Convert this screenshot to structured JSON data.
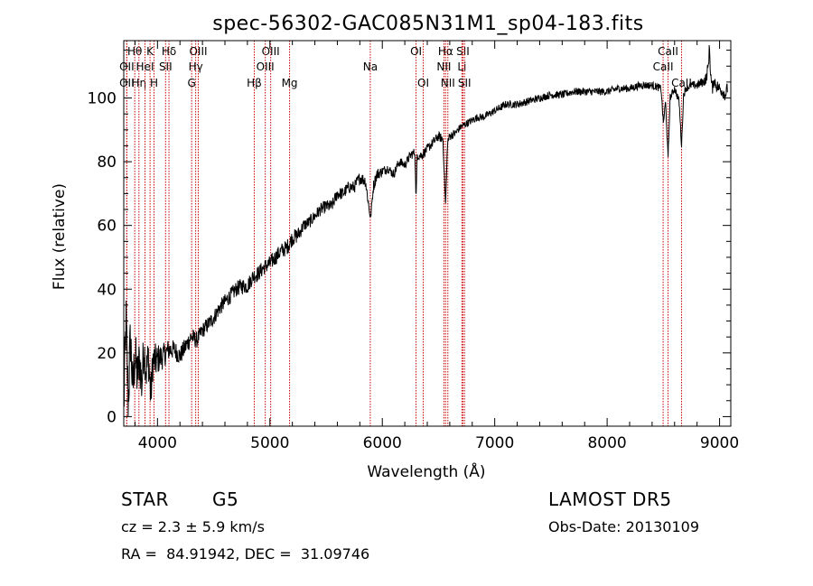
{
  "chart_data": {
    "type": "line",
    "title": "spec-56302-GAC085N31M1_sp04-183.fits",
    "xlabel": "Wavelength (Å)",
    "ylabel": "Flux (relative)",
    "xlim": [
      3700,
      9100
    ],
    "ylim": [
      -3,
      118
    ],
    "xticks": [
      4000,
      5000,
      6000,
      7000,
      8000,
      9000
    ],
    "yticks": [
      0,
      20,
      40,
      60,
      80,
      100
    ],
    "grid": false,
    "series": [
      {
        "color": "#000000",
        "x": [
          3700,
          3720,
          3740,
          3760,
          3780,
          3800,
          3820,
          3840,
          3860,
          3880,
          3900,
          3920,
          3940,
          3960,
          3980,
          4000,
          4050,
          4100,
          4150,
          4200,
          4250,
          4300,
          4350,
          4400,
          4450,
          4500,
          4550,
          4600,
          4650,
          4700,
          4750,
          4800,
          4850,
          4900,
          4950,
          5000,
          5050,
          5100,
          5150,
          5200,
          5250,
          5300,
          5350,
          5400,
          5450,
          5500,
          5550,
          5600,
          5650,
          5700,
          5750,
          5800,
          5850,
          5895,
          5920,
          5950,
          6000,
          6050,
          6100,
          6150,
          6200,
          6250,
          6290,
          6300,
          6310,
          6350,
          6400,
          6450,
          6500,
          6540,
          6563,
          6580,
          6600,
          6650,
          6700,
          6750,
          6800,
          6850,
          6900,
          6950,
          7000,
          7100,
          7200,
          7300,
          7400,
          7500,
          7600,
          7700,
          7800,
          7900,
          8000,
          8100,
          8200,
          8300,
          8400,
          8480,
          8500,
          8520,
          8542,
          8560,
          8600,
          8640,
          8662,
          8680,
          8700,
          8750,
          8800,
          8850,
          8880,
          8900,
          8910,
          8920,
          8930,
          8940,
          8950,
          8970,
          9000,
          9030,
          9050,
          9070
        ],
        "y": [
          3,
          30,
          5,
          25,
          8,
          20,
          12,
          18,
          10,
          22,
          14,
          19,
          6,
          18,
          17,
          18,
          19,
          21,
          21,
          19,
          22,
          25,
          24,
          27,
          29,
          31,
          34,
          36,
          38,
          40,
          41,
          41,
          44,
          45,
          47,
          48,
          50,
          52,
          53,
          56,
          57,
          60,
          61,
          63,
          65,
          66,
          66,
          70,
          70,
          72,
          72,
          75,
          74,
          62,
          72,
          76,
          77,
          78,
          76,
          80,
          79,
          82,
          83,
          68,
          82,
          82,
          84,
          86,
          88,
          87,
          66,
          86,
          88,
          89,
          91,
          92,
          93,
          94,
          94,
          95,
          96,
          98,
          98,
          99,
          100,
          101,
          101,
          102,
          102,
          102,
          102,
          103,
          103,
          104,
          104,
          103,
          92,
          99,
          81,
          100,
          103,
          99,
          85,
          101,
          103,
          104,
          104,
          105,
          106,
          110,
          116,
          108,
          104,
          103,
          106,
          104,
          103,
          102,
          101,
          103
        ],
        "noise_amplitude": [
          10,
          10,
          10,
          10,
          9,
          9,
          8,
          8,
          8,
          7,
          7,
          7,
          7,
          6,
          6,
          5,
          4,
          3.5,
          3,
          3,
          3,
          3,
          2.5,
          2.5,
          2.5,
          2.5,
          2.5,
          2.5,
          2.5,
          2.5,
          2.5,
          2.5,
          2.5,
          2.5,
          2.5,
          2.5,
          2.5,
          2.5,
          2.5,
          2.5,
          2.5,
          2,
          2,
          2,
          2,
          2,
          2,
          2,
          2,
          2,
          2,
          2,
          2,
          1,
          2,
          2,
          1.5,
          1.5,
          1.5,
          1.5,
          1.5,
          1.5,
          1.5,
          1,
          1.5,
          1.5,
          1.5,
          1.5,
          1.5,
          1.5,
          1,
          1.5,
          1.5,
          1.2,
          1.2,
          1.2,
          1.2,
          1.2,
          1.2,
          1.2,
          1.2,
          1.2,
          1.2,
          1.2,
          1.2,
          1.2,
          1.2,
          1.2,
          1.2,
          1.2,
          1.2,
          1.2,
          1.2,
          1.2,
          1.2,
          1.2,
          1,
          1,
          1,
          1.2,
          1.2,
          1.2,
          1,
          1.2,
          1.2,
          1.2,
          1.5,
          1.5,
          2,
          2,
          2,
          2,
          2,
          2,
          2,
          2,
          2,
          2,
          2,
          2
        ]
      }
    ],
    "line_markers": [
      {
        "label": "Hθ",
        "wl": 3798,
        "row": 0,
        "color": "#cc0000"
      },
      {
        "label": "OII",
        "wl": 3727,
        "row": 1,
        "color": "#cc0000"
      },
      {
        "label": "OII",
        "wl": 3727,
        "row": 2,
        "color": "#cc0000"
      },
      {
        "label": "Hη",
        "wl": 3835,
        "row": 2,
        "color": "#cc0000"
      },
      {
        "label": "HeI",
        "wl": 3889,
        "row": 1,
        "color": "#cc0000"
      },
      {
        "label": "K",
        "wl": 3934,
        "row": 0,
        "color": "#cc0000"
      },
      {
        "label": "H",
        "wl": 3969,
        "row": 2,
        "color": "#cc0000"
      },
      {
        "label": "Hδ",
        "wl": 4102,
        "row": 0,
        "color": "#cc0000"
      },
      {
        "label": "SII",
        "wl": 4072,
        "row": 1,
        "color": "#cc0000"
      },
      {
        "label": "OIII",
        "wl": 4363,
        "row": 0,
        "color": "#cc0000"
      },
      {
        "label": "Hγ",
        "wl": 4340,
        "row": 1,
        "color": "#cc0000"
      },
      {
        "label": "G",
        "wl": 4304,
        "row": 2,
        "color": "#cc0000"
      },
      {
        "label": "Hβ",
        "wl": 4861,
        "row": 2,
        "color": "#cc0000"
      },
      {
        "label": "OIII",
        "wl": 5007,
        "row": 0,
        "color": "#cc0000"
      },
      {
        "label": "OIII",
        "wl": 4959,
        "row": 1,
        "color": "#cc0000"
      },
      {
        "label": "Mg",
        "wl": 5175,
        "row": 2,
        "color": "#cc0000"
      },
      {
        "label": "Na",
        "wl": 5893,
        "row": 1,
        "color": "#cc0000"
      },
      {
        "label": "OI",
        "wl": 6300,
        "row": 0,
        "color": "#cc0000"
      },
      {
        "label": "OI",
        "wl": 6364,
        "row": 2,
        "color": "#cc0000"
      },
      {
        "label": "Hα",
        "wl": 6563,
        "row": 0,
        "color": "#cc0000"
      },
      {
        "label": "NII",
        "wl": 6548,
        "row": 1,
        "color": "#cc0000"
      },
      {
        "label": "NII",
        "wl": 6583,
        "row": 2,
        "color": "#cc0000"
      },
      {
        "label": "SII",
        "wl": 6717,
        "row": 0,
        "color": "#cc0000"
      },
      {
        "label": "Li",
        "wl": 6708,
        "row": 1,
        "color": "#cc0000"
      },
      {
        "label": "SII",
        "wl": 6731,
        "row": 2,
        "color": "#cc0000"
      },
      {
        "label": "CaII",
        "wl": 8542,
        "row": 0,
        "color": "#cc0000"
      },
      {
        "label": "CaII",
        "wl": 8498,
        "row": 1,
        "color": "#cc0000"
      },
      {
        "label": "CaII",
        "wl": 8662,
        "row": 2,
        "color": "#cc0000"
      }
    ]
  },
  "info": {
    "object_class": "STAR",
    "subclass": "G5",
    "survey": "LAMOST DR5",
    "cz": "cz = 2.3 ± 5.9 km/s",
    "obs_date": "Obs-Date: 20130109",
    "coords": "RA =  84.91942, DEC =  31.09746"
  }
}
